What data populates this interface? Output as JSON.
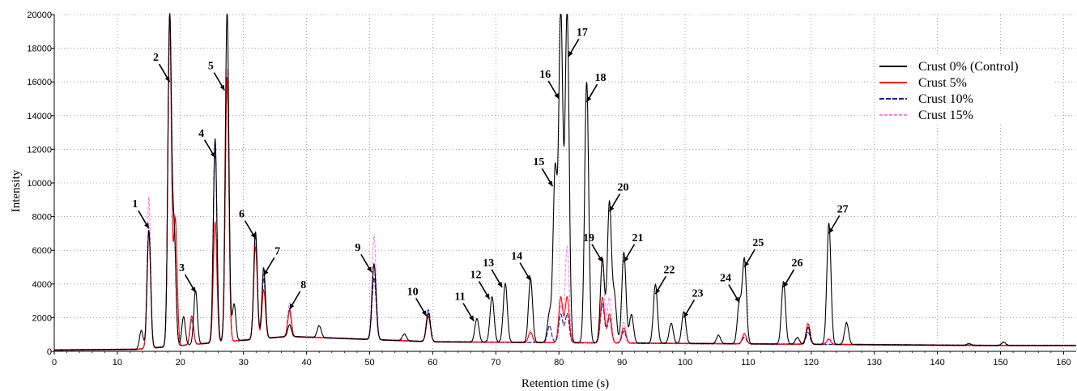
{
  "chart_data": {
    "type": "line",
    "xlabel": "Retention time (s)",
    "ylabel": "Intensity",
    "xlim": [
      0,
      162
    ],
    "ylim": [
      0,
      20000
    ],
    "xticks": [
      0,
      10,
      20,
      30,
      40,
      50,
      60,
      70,
      80,
      90,
      100,
      110,
      120,
      130,
      140,
      150,
      160
    ],
    "yticks": [
      0,
      2000,
      4000,
      6000,
      8000,
      10000,
      12000,
      14000,
      16000,
      18000,
      20000
    ],
    "grid": true,
    "legend_position": "top-right",
    "series": [
      {
        "name": "Crust 0% (Control)",
        "color": "#000000",
        "peaks": [
          [
            13.8,
            1400
          ],
          [
            15.0,
            7300
          ],
          [
            18.3,
            20000
          ],
          [
            19.0,
            7000
          ],
          [
            20.5,
            2000
          ],
          [
            22.4,
            3500
          ],
          [
            25.5,
            12400
          ],
          [
            27.4,
            20000
          ],
          [
            28.5,
            2500
          ],
          [
            31.9,
            6700
          ],
          [
            33.2,
            4500
          ],
          [
            37.3,
            1000
          ],
          [
            42,
            1000
          ],
          [
            50.7,
            4800
          ],
          [
            55.5,
            700
          ],
          [
            59.3,
            2000
          ],
          [
            67.0,
            1700
          ],
          [
            69.4,
            3000
          ],
          [
            71.5,
            3800
          ],
          [
            75.5,
            4100
          ],
          [
            78.5,
            2000
          ],
          [
            79.4,
            10500
          ],
          [
            80.3,
            20000
          ],
          [
            81.3,
            20000
          ],
          [
            84.4,
            15800
          ],
          [
            86.9,
            5300
          ],
          [
            88.0,
            8600
          ],
          [
            88.8,
            3000
          ],
          [
            90.3,
            5700
          ],
          [
            91.5,
            2000
          ],
          [
            95.3,
            3800
          ],
          [
            97.8,
            1500
          ],
          [
            99.8,
            2200
          ],
          [
            105.3,
            800
          ],
          [
            108.6,
            2700
          ],
          [
            109.4,
            5300
          ],
          [
            115.6,
            4000
          ],
          [
            117.8,
            700
          ],
          [
            119.5,
            1300
          ],
          [
            122.8,
            7500
          ],
          [
            125.6,
            1600
          ],
          [
            145,
            400
          ],
          [
            150.5,
            500
          ]
        ]
      },
      {
        "name": "Crust 5%",
        "color": "#ff0000",
        "peaks": [
          [
            15.0,
            7300
          ],
          [
            18.3,
            20000
          ],
          [
            19.2,
            7800
          ],
          [
            21.8,
            2000
          ],
          [
            25.5,
            7500
          ],
          [
            27.4,
            16000
          ],
          [
            31.9,
            5800
          ],
          [
            33.2,
            3200
          ],
          [
            37.3,
            1800
          ],
          [
            50.7,
            4800
          ],
          [
            59.3,
            1800
          ],
          [
            75.5,
            900
          ],
          [
            80.3,
            3000
          ],
          [
            81.3,
            3000
          ],
          [
            86.9,
            3000
          ],
          [
            88.0,
            2000
          ],
          [
            90.3,
            1200
          ],
          [
            109.4,
            900
          ],
          [
            119.5,
            1500
          ],
          [
            122.8,
            600
          ]
        ]
      },
      {
        "name": "Crust 10%",
        "color": "#1a1a8c",
        "peaks": [
          [
            15.0,
            7300
          ],
          [
            18.3,
            20000
          ],
          [
            19.0,
            7000
          ],
          [
            21.8,
            1800
          ],
          [
            25.5,
            12400
          ],
          [
            27.4,
            16000
          ],
          [
            31.9,
            6500
          ],
          [
            33.2,
            3900
          ],
          [
            37.3,
            1900
          ],
          [
            50.7,
            4000
          ],
          [
            59.3,
            2200
          ],
          [
            78.5,
            1300
          ],
          [
            80.3,
            2000
          ],
          [
            81.3,
            2000
          ],
          [
            86.9,
            2600
          ],
          [
            88.0,
            1800
          ],
          [
            90.3,
            1000
          ],
          [
            109.4,
            700
          ],
          [
            119.5,
            1000
          ]
        ]
      },
      {
        "name": "Crust 15%",
        "color": "#ee82ee",
        "peaks": [
          [
            15.0,
            9300
          ],
          [
            18.3,
            18500
          ],
          [
            19.2,
            8000
          ],
          [
            21.8,
            2000
          ],
          [
            25.5,
            12000
          ],
          [
            27.4,
            16500
          ],
          [
            31.9,
            6000
          ],
          [
            33.2,
            4000
          ],
          [
            37.3,
            2300
          ],
          [
            50.7,
            6500
          ],
          [
            59.3,
            2000
          ],
          [
            75.5,
            1000
          ],
          [
            80.3,
            2500
          ],
          [
            81.3,
            6000
          ],
          [
            86.9,
            5000
          ],
          [
            88.0,
            3000
          ],
          [
            90.3,
            1500
          ],
          [
            109.4,
            900
          ],
          [
            119.5,
            1600
          ],
          [
            122.8,
            700
          ]
        ]
      }
    ],
    "annotations": [
      {
        "label": "1",
        "x": 15.0,
        "y": 7300,
        "at": "upper-left"
      },
      {
        "label": "2",
        "x": 18.3,
        "y": 16000,
        "at": "upper-left"
      },
      {
        "label": "3",
        "x": 22.4,
        "y": 3500,
        "at": "upper-left"
      },
      {
        "label": "4",
        "x": 25.5,
        "y": 11500,
        "at": "upper-left"
      },
      {
        "label": "5",
        "x": 27.0,
        "y": 15500,
        "at": "upper-left"
      },
      {
        "label": "6",
        "x": 31.9,
        "y": 6700,
        "at": "upper-left"
      },
      {
        "label": "7",
        "x": 33.2,
        "y": 4500,
        "at": "upper-right"
      },
      {
        "label": "8",
        "x": 37.3,
        "y": 2500,
        "at": "upper-right"
      },
      {
        "label": "9",
        "x": 50.3,
        "y": 4700,
        "at": "upper-left"
      },
      {
        "label": "10",
        "x": 59.0,
        "y": 2100,
        "at": "upper-left"
      },
      {
        "label": "11",
        "x": 66.5,
        "y": 1800,
        "at": "upper-left"
      },
      {
        "label": "12",
        "x": 69.0,
        "y": 3100,
        "at": "upper-left"
      },
      {
        "label": "13",
        "x": 71.0,
        "y": 3800,
        "at": "upper-left"
      },
      {
        "label": "14",
        "x": 75.5,
        "y": 4200,
        "at": "upper-left"
      },
      {
        "label": "15",
        "x": 79.0,
        "y": 9800,
        "at": "upper-left"
      },
      {
        "label": "16",
        "x": 80.0,
        "y": 15000,
        "at": "upper-left"
      },
      {
        "label": "17",
        "x": 81.5,
        "y": 17500,
        "at": "upper-right"
      },
      {
        "label": "18",
        "x": 84.4,
        "y": 14800,
        "at": "upper-right"
      },
      {
        "label": "19",
        "x": 86.9,
        "y": 5300,
        "at": "upper-left"
      },
      {
        "label": "20",
        "x": 88.0,
        "y": 8300,
        "at": "upper-right"
      },
      {
        "label": "21",
        "x": 90.3,
        "y": 5300,
        "at": "upper-right"
      },
      {
        "label": "22",
        "x": 95.3,
        "y": 3400,
        "at": "upper-right"
      },
      {
        "label": "23",
        "x": 99.8,
        "y": 2000,
        "at": "upper-right"
      },
      {
        "label": "24",
        "x": 108.6,
        "y": 2900,
        "at": "upper-left"
      },
      {
        "label": "25",
        "x": 109.4,
        "y": 5000,
        "at": "upper-right"
      },
      {
        "label": "26",
        "x": 115.6,
        "y": 3800,
        "at": "upper-right"
      },
      {
        "label": "27",
        "x": 122.8,
        "y": 7000,
        "at": "upper-right"
      }
    ]
  }
}
